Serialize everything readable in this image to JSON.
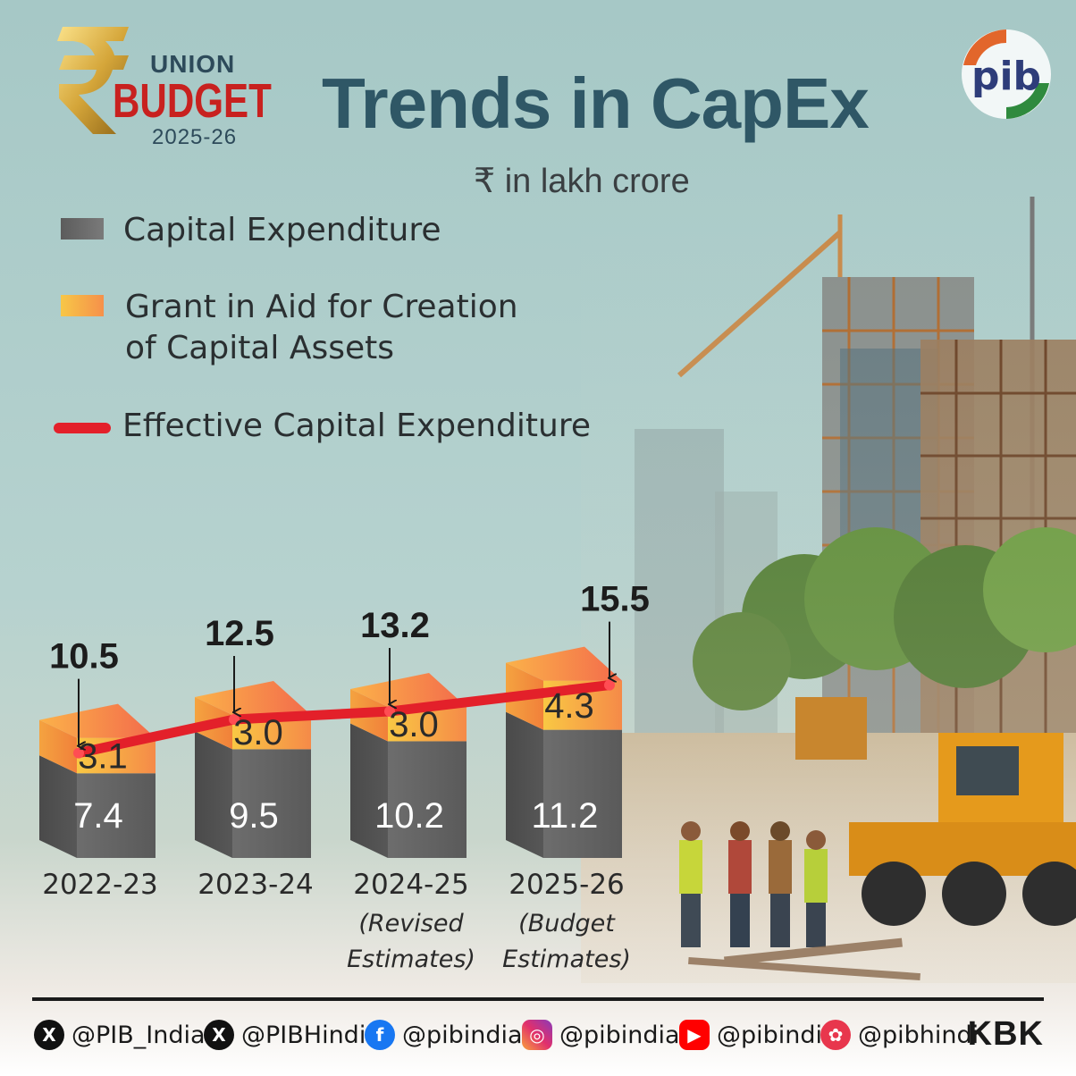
{
  "header": {
    "logo": {
      "union": "UNION",
      "budget": "BUDGET",
      "year": "2025-26"
    },
    "title": "Trends in CapEx",
    "unit": "₹ in lakh crore",
    "pib_logo": "pib"
  },
  "legend": {
    "capex": "Capital Expenditure",
    "grant_line1": "Grant in Aid for Creation",
    "grant_line2": "of Capital Assets",
    "effective": "Effective Capital Expenditure"
  },
  "chart_data": {
    "type": "bar",
    "stacked": true,
    "categories": [
      "2022-23",
      "2023-24",
      "2024-25",
      "2025-26"
    ],
    "category_notes": [
      "",
      "",
      "(Revised Estimates)",
      "(Budget Estimates)"
    ],
    "category_note_lines": [
      [],
      [],
      [
        "(Revised",
        "Estimates)"
      ],
      [
        "(Budget",
        "Estimates)"
      ]
    ],
    "series": [
      {
        "name": "Capital Expenditure",
        "values": [
          7.4,
          9.5,
          10.2,
          11.2
        ],
        "color": "#666666"
      },
      {
        "name": "Grant in Aid for Creation of Capital Assets",
        "values": [
          3.1,
          3.0,
          3.0,
          4.3
        ],
        "color": "#f7a442"
      }
    ],
    "line": {
      "name": "Effective Capital Expenditure",
      "values": [
        10.5,
        12.5,
        13.2,
        15.5
      ],
      "color": "#e3202a"
    },
    "value_labels": [
      "10.5",
      "12.5",
      "13.2",
      "15.5"
    ],
    "capex_labels": [
      "7.4",
      "9.5",
      "10.2",
      "11.2"
    ],
    "grant_labels": [
      "3.1",
      "3.0",
      "3.0",
      "4.3"
    ],
    "title": "Trends in CapEx",
    "ylabel": "₹ in lakh crore"
  },
  "footer": {
    "socials": [
      {
        "icon": "x-icon",
        "handle": "@PIB_India"
      },
      {
        "icon": "x-icon",
        "handle": "@PIBHindi"
      },
      {
        "icon": "facebook-icon",
        "handle": "@pibindia"
      },
      {
        "icon": "instagram-icon",
        "handle": "@pibindia"
      },
      {
        "icon": "youtube-icon",
        "handle": "@pibindia"
      },
      {
        "icon": "koo-icon",
        "handle": "@pibhindi"
      }
    ],
    "tag": "KBK"
  },
  "colors": {
    "title": "#2f5766",
    "capex_dark": "#555555",
    "grant_light": "#f9c844",
    "grant_dark": "#f57e4a",
    "effective_line": "#e3202a"
  }
}
